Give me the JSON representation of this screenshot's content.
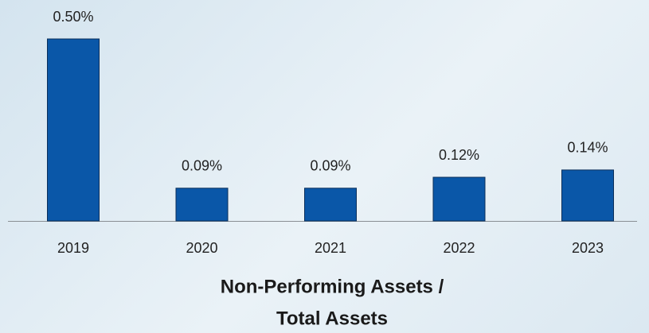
{
  "chart_data": {
    "type": "bar",
    "title": [
      "Non-Performing Assets /",
      "Total Assets"
    ],
    "categories": [
      "2019",
      "2020",
      "2021",
      "2022",
      "2023"
    ],
    "values": [
      0.5,
      0.09,
      0.09,
      0.12,
      0.14
    ],
    "value_labels": [
      "0.50%",
      "0.09%",
      "0.09%",
      "0.12%",
      "0.14%"
    ],
    "color": "#0a57a8"
  }
}
